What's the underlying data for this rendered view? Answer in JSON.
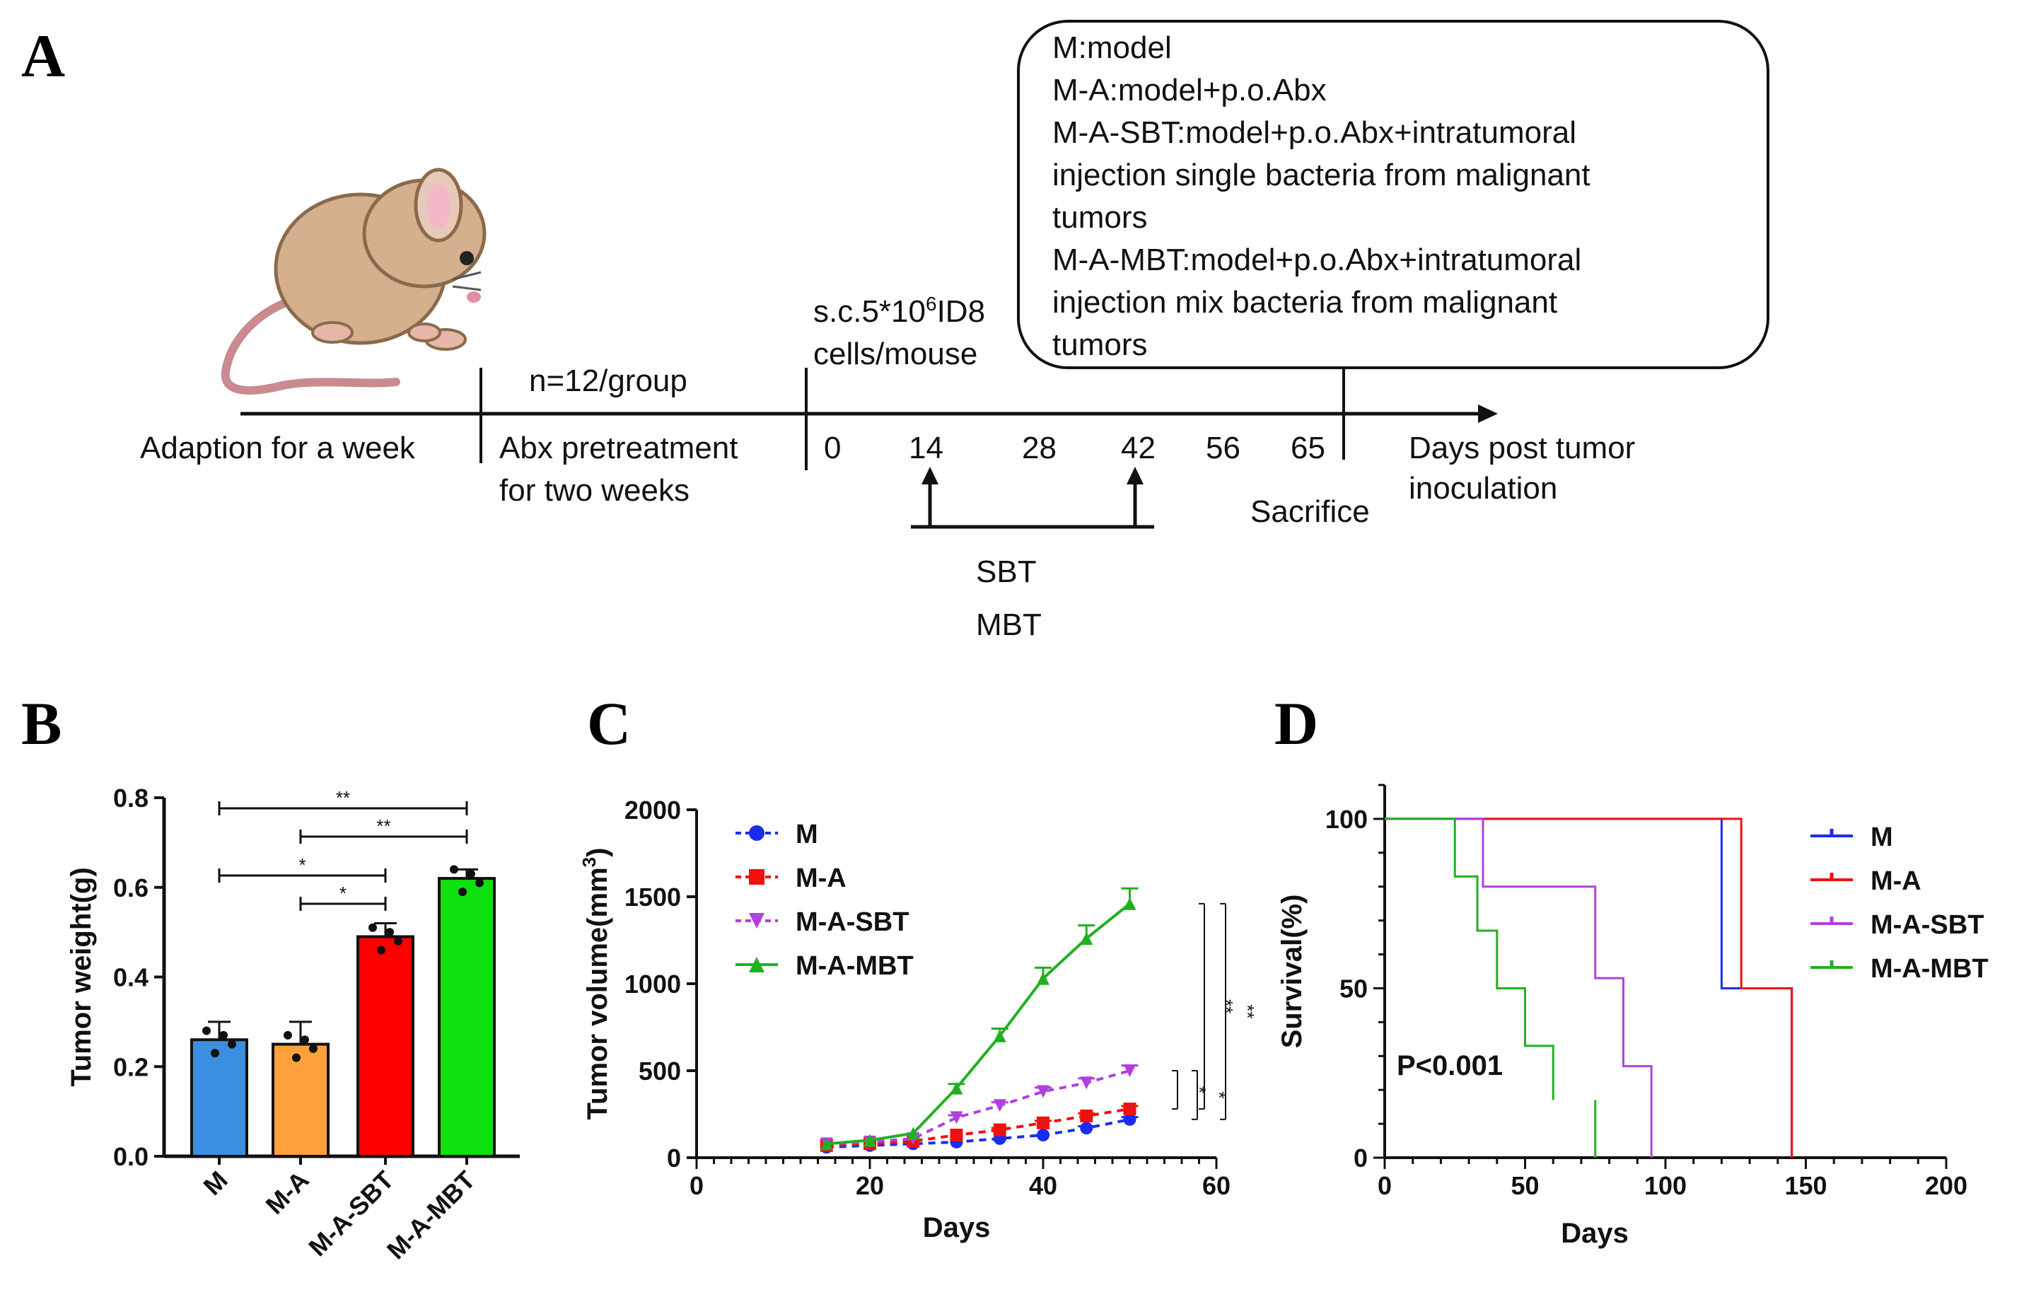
{
  "panel_A": {
    "letter": "A",
    "legend_box": [
      "M:model",
      "M-A:model+p.o.Abx",
      "M-A-SBT:model+p.o.Abx+intratumoral",
      "injection single bacteria from malignant",
      "tumors",
      "M-A-MBT:model+p.o.Abx+intratumoral",
      "injection mix bacteria from malignant",
      "tumors"
    ],
    "group_size": "n=12/group",
    "inoculation_line1": "s.c.5*10",
    "inoculation_sup": "6",
    "inoculation_line1_end": "ID8",
    "inoculation_line2": "cells/mouse",
    "adaption": "Adaption for a week",
    "abx_line1": "Abx pretreatment",
    "abx_line2": "for two weeks",
    "days": [
      "0",
      "14",
      "28",
      "42",
      "56",
      "65"
    ],
    "axis_label_line1": "Days post tumor",
    "axis_label_line2": "inoculation",
    "sacrifice": "Sacrifice",
    "treatment_line1": "SBT",
    "treatment_line2": "MBT"
  },
  "colors": {
    "M": "#3b8fe0",
    "M-A": "#ffa13a",
    "M-A-SBT": "#ff0000",
    "M-A-MBT": "#0fe00f",
    "line_M": "#1a2cf0",
    "line_MA": "#f01010",
    "line_SBT": "#b040e0",
    "line_MBT": "#22b022"
  },
  "chart_data": [
    {
      "panel": "B",
      "type": "bar",
      "categories": [
        "M",
        "M-A",
        "M-A-SBT",
        "M-A-MBT"
      ],
      "values": [
        0.26,
        0.25,
        0.49,
        0.62
      ],
      "errors": [
        0.04,
        0.05,
        0.03,
        0.02
      ],
      "ylabel": "Tumor weight(g)",
      "ylim": [
        0,
        0.8
      ],
      "yticks": [
        "0.0",
        "0.2",
        "0.4",
        "0.6",
        "0.8"
      ],
      "significance": [
        {
          "from": 0,
          "to": 3,
          "label": "**"
        },
        {
          "from": 1,
          "to": 3,
          "label": "**"
        },
        {
          "from": 0,
          "to": 2,
          "label": "*"
        },
        {
          "from": 1,
          "to": 2,
          "label": "*"
        }
      ]
    },
    {
      "panel": "C",
      "type": "line",
      "x": [
        15,
        20,
        25,
        30,
        35,
        40,
        45,
        50
      ],
      "series": [
        {
          "name": "M",
          "values": [
            60,
            70,
            80,
            90,
            110,
            130,
            170,
            220
          ]
        },
        {
          "name": "M-A",
          "values": [
            70,
            80,
            95,
            130,
            160,
            200,
            240,
            280
          ]
        },
        {
          "name": "M-A-SBT",
          "values": [
            80,
            90,
            110,
            230,
            300,
            380,
            430,
            500
          ]
        },
        {
          "name": "M-A-MBT",
          "values": [
            80,
            100,
            140,
            400,
            700,
            1030,
            1260,
            1460
          ]
        }
      ],
      "xlabel": "Days",
      "ylabel": "Tumor volume(mm",
      "ylabel_sup": "3",
      "ylabel_end": ")",
      "xlim": [
        0,
        60
      ],
      "ylim": [
        0,
        2000
      ],
      "xticks": [
        "0",
        "20",
        "40",
        "60"
      ],
      "yticks": [
        "0",
        "500",
        "1000",
        "1500",
        "2000"
      ],
      "significance": [
        "*",
        "*",
        "**",
        "**"
      ]
    },
    {
      "panel": "D",
      "type": "line",
      "subtype": "survival-step",
      "series": [
        {
          "name": "M",
          "steps": [
            [
              0,
              100
            ],
            [
              120,
              100
            ],
            [
              120,
              50
            ],
            [
              145,
              50
            ],
            [
              145,
              0
            ]
          ]
        },
        {
          "name": "M-A",
          "steps": [
            [
              0,
              100
            ],
            [
              127,
              100
            ],
            [
              127,
              50
            ],
            [
              145,
              50
            ],
            [
              145,
              0
            ]
          ]
        },
        {
          "name": "M-A-SBT",
          "steps": [
            [
              0,
              100
            ],
            [
              35,
              100
            ],
            [
              35,
              80
            ],
            [
              75,
              80
            ],
            [
              75,
              53
            ],
            [
              85,
              53
            ],
            [
              85,
              27
            ],
            [
              95,
              27
            ],
            [
              95,
              0
            ]
          ]
        },
        {
          "name": "M-A-MBT",
          "steps": [
            [
              0,
              100
            ],
            [
              25,
              100
            ],
            [
              25,
              83
            ],
            [
              33,
              83
            ],
            [
              33,
              67
            ],
            [
              40,
              67
            ],
            [
              40,
              50
            ],
            [
              50,
              50
            ],
            [
              50,
              33
            ],
            [
              60,
              33
            ],
            [
              60,
              17
            ]
          ],
          "extra_tick": [
            75,
            17
          ]
        }
      ],
      "xlabel": "Days",
      "ylabel": "Survival(%)",
      "xlim": [
        0,
        200
      ],
      "ylim": [
        0,
        110
      ],
      "xticks": [
        "0",
        "50",
        "100",
        "150",
        "200"
      ],
      "yticks": [
        "0",
        "50",
        "100"
      ],
      "annotation": "P<0.001"
    }
  ]
}
